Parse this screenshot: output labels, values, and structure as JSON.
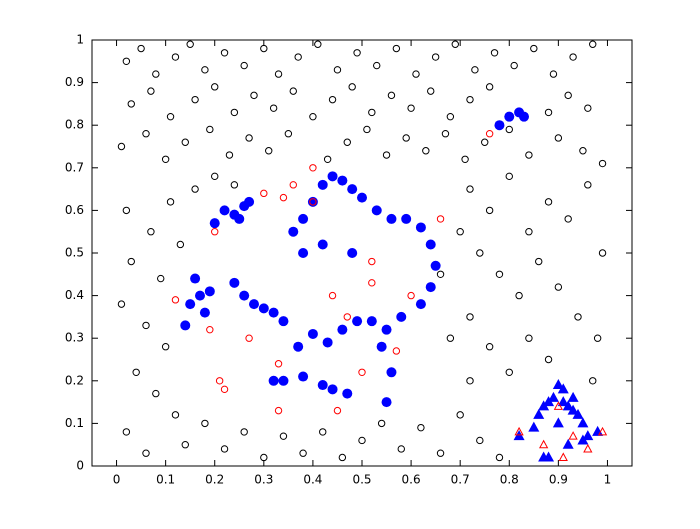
{
  "chart_data": {
    "type": "scatter",
    "xlim": [
      -0.05,
      1.05
    ],
    "ylim": [
      0,
      1
    ],
    "xticks": [
      0,
      0.1,
      0.2,
      0.3,
      0.4,
      0.5,
      0.6,
      0.7,
      0.8,
      0.9,
      1
    ],
    "yticks": [
      0,
      0.1,
      0.2,
      0.3,
      0.4,
      0.5,
      0.6,
      0.7,
      0.8,
      0.9,
      1
    ],
    "series": [
      {
        "color": "#000000",
        "marker": "open-circle",
        "x": [
          0.02,
          0.05,
          0.08,
          0.12,
          0.15,
          0.18,
          0.22,
          0.26,
          0.3,
          0.33,
          0.37,
          0.41,
          0.45,
          0.49,
          0.53,
          0.57,
          0.61,
          0.65,
          0.69,
          0.73,
          0.77,
          0.81,
          0.85,
          0.89,
          0.93,
          0.97,
          0.03,
          0.07,
          0.11,
          0.16,
          0.2,
          0.24,
          0.28,
          0.32,
          0.36,
          0.4,
          0.44,
          0.48,
          0.52,
          0.56,
          0.6,
          0.64,
          0.68,
          0.72,
          0.76,
          0.88,
          0.92,
          0.96,
          0.01,
          0.06,
          0.1,
          0.14,
          0.19,
          0.23,
          0.27,
          0.31,
          0.35,
          0.43,
          0.47,
          0.51,
          0.55,
          0.59,
          0.63,
          0.67,
          0.71,
          0.75,
          0.8,
          0.84,
          0.9,
          0.95,
          0.99,
          0.02,
          0.07,
          0.11,
          0.03,
          0.09,
          0.13,
          0.01,
          0.06,
          0.1,
          0.04,
          0.08,
          0.12,
          0.02,
          0.06,
          0.14,
          0.18,
          0.22,
          0.26,
          0.3,
          0.34,
          0.38,
          0.42,
          0.46,
          0.5,
          0.54,
          0.58,
          0.62,
          0.66,
          0.7,
          0.74,
          0.78,
          0.72,
          0.76,
          0.8,
          0.84,
          0.88,
          0.92,
          0.96,
          0.99,
          0.74,
          0.78,
          0.82,
          0.86,
          0.9,
          0.94,
          0.98,
          0.72,
          0.76,
          0.8,
          0.84,
          0.88,
          0.97,
          0.72,
          0.68,
          0.66,
          0.7,
          0.16,
          0.2,
          0.24
        ],
        "values": [
          0.95,
          0.98,
          0.92,
          0.96,
          0.99,
          0.93,
          0.97,
          0.94,
          0.98,
          0.92,
          0.96,
          0.99,
          0.93,
          0.97,
          0.94,
          0.98,
          0.92,
          0.96,
          0.99,
          0.93,
          0.97,
          0.94,
          0.98,
          0.92,
          0.96,
          0.99,
          0.85,
          0.88,
          0.82,
          0.86,
          0.89,
          0.83,
          0.87,
          0.84,
          0.88,
          0.82,
          0.86,
          0.89,
          0.83,
          0.87,
          0.84,
          0.88,
          0.82,
          0.86,
          0.89,
          0.83,
          0.87,
          0.84,
          0.75,
          0.78,
          0.72,
          0.76,
          0.79,
          0.73,
          0.77,
          0.74,
          0.78,
          0.72,
          0.76,
          0.79,
          0.73,
          0.77,
          0.74,
          0.78,
          0.72,
          0.76,
          0.79,
          0.73,
          0.77,
          0.74,
          0.71,
          0.6,
          0.55,
          0.62,
          0.48,
          0.44,
          0.52,
          0.38,
          0.33,
          0.28,
          0.22,
          0.17,
          0.12,
          0.08,
          0.03,
          0.05,
          0.1,
          0.04,
          0.08,
          0.02,
          0.07,
          0.03,
          0.08,
          0.02,
          0.06,
          0.1,
          0.04,
          0.09,
          0.03,
          0.12,
          0.06,
          0.02,
          0.65,
          0.6,
          0.68,
          0.55,
          0.62,
          0.58,
          0.66,
          0.5,
          0.5,
          0.45,
          0.4,
          0.48,
          0.42,
          0.35,
          0.3,
          0.35,
          0.28,
          0.22,
          0.3,
          0.25,
          0.2,
          0.2,
          0.3,
          0.45,
          0.55,
          0.65,
          0.68,
          0.66
        ]
      },
      {
        "color": "#0000ff",
        "marker": "filled-circle",
        "x": [
          0.2,
          0.22,
          0.24,
          0.26,
          0.27,
          0.25,
          0.14,
          0.15,
          0.17,
          0.19,
          0.16,
          0.18,
          0.24,
          0.26,
          0.28,
          0.3,
          0.32,
          0.34,
          0.36,
          0.38,
          0.4,
          0.42,
          0.44,
          0.46,
          0.48,
          0.5,
          0.53,
          0.56,
          0.59,
          0.62,
          0.64,
          0.65,
          0.64,
          0.62,
          0.58,
          0.55,
          0.52,
          0.48,
          0.42,
          0.38,
          0.37,
          0.4,
          0.43,
          0.46,
          0.49,
          0.32,
          0.34,
          0.38,
          0.42,
          0.44,
          0.47,
          0.55,
          0.56,
          0.54,
          0.78,
          0.8,
          0.82,
          0.83
        ],
        "values": [
          0.57,
          0.6,
          0.59,
          0.61,
          0.62,
          0.58,
          0.33,
          0.38,
          0.4,
          0.41,
          0.44,
          0.36,
          0.43,
          0.4,
          0.38,
          0.37,
          0.36,
          0.34,
          0.55,
          0.58,
          0.62,
          0.66,
          0.68,
          0.67,
          0.65,
          0.63,
          0.6,
          0.58,
          0.58,
          0.56,
          0.52,
          0.47,
          0.42,
          0.38,
          0.35,
          0.32,
          0.34,
          0.5,
          0.52,
          0.5,
          0.28,
          0.31,
          0.29,
          0.32,
          0.34,
          0.2,
          0.2,
          0.21,
          0.19,
          0.18,
          0.17,
          0.15,
          0.22,
          0.28,
          0.8,
          0.82,
          0.83,
          0.82
        ]
      },
      {
        "color": "#ff0000",
        "marker": "open-circle",
        "x": [
          0.12,
          0.2,
          0.21,
          0.3,
          0.34,
          0.36,
          0.4,
          0.44,
          0.47,
          0.52,
          0.6,
          0.66,
          0.33,
          0.27,
          0.19,
          0.22,
          0.45,
          0.5,
          0.57,
          0.33,
          0.76,
          0.52,
          0.4
        ],
        "values": [
          0.39,
          0.55,
          0.2,
          0.64,
          0.63,
          0.66,
          0.62,
          0.4,
          0.35,
          0.43,
          0.4,
          0.58,
          0.24,
          0.3,
          0.32,
          0.18,
          0.13,
          0.22,
          0.27,
          0.13,
          0.78,
          0.48,
          0.7
        ]
      },
      {
        "color": "#0000ff",
        "marker": "filled-triangle",
        "x": [
          0.82,
          0.85,
          0.86,
          0.87,
          0.88,
          0.89,
          0.9,
          0.91,
          0.92,
          0.93,
          0.94,
          0.95,
          0.96,
          0.87,
          0.9,
          0.93,
          0.92,
          0.95,
          0.98,
          0.88,
          0.91
        ],
        "values": [
          0.07,
          0.09,
          0.12,
          0.14,
          0.15,
          0.16,
          0.19,
          0.18,
          0.14,
          0.16,
          0.12,
          0.1,
          0.07,
          0.02,
          0.1,
          0.13,
          0.05,
          0.06,
          0.08,
          0.02,
          0.15
        ]
      },
      {
        "color": "#ff0000",
        "marker": "open-triangle",
        "x": [
          0.82,
          0.87,
          0.9,
          0.93,
          0.96,
          0.99,
          0.91
        ],
        "values": [
          0.08,
          0.05,
          0.14,
          0.07,
          0.04,
          0.08,
          0.02
        ]
      }
    ]
  }
}
